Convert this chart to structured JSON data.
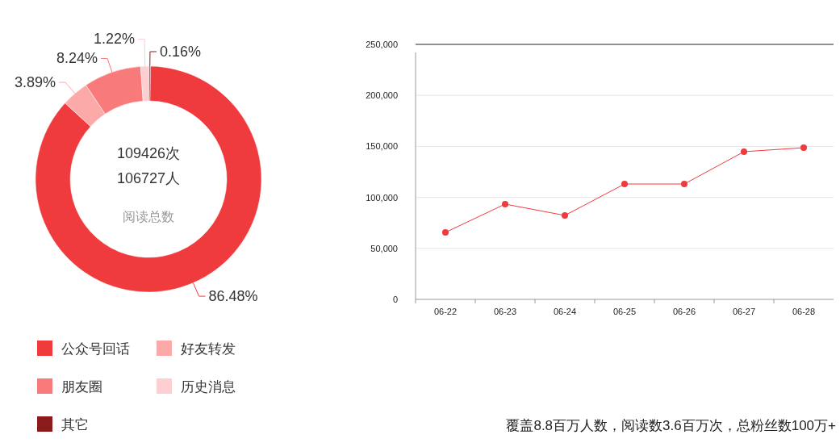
{
  "chart_data": [
    {
      "type": "donut",
      "categories": [
        "公众号回话",
        "好友转发",
        "朋友圈",
        "历史消息",
        "其它"
      ],
      "values": [
        86.48,
        3.89,
        8.24,
        1.22,
        0.16
      ],
      "colors": [
        "#ef3b3e",
        "#fbaaa9",
        "#f97a7a",
        "#fdcfd0",
        "#8b1a1a"
      ],
      "value_labels": [
        "86.48%",
        "3.89%",
        "8.24%",
        "1.22%",
        "0.16%"
      ],
      "legend": "bottom",
      "annotations": [
        "109426次",
        "106727人",
        "阅读总数"
      ]
    },
    {
      "type": "line",
      "categories": [
        "06-22",
        "06-23",
        "06-24",
        "06-25",
        "06-26",
        "06-27",
        "06-28"
      ],
      "values": [
        65700,
        93400,
        82300,
        113100,
        113100,
        144800,
        148700
      ],
      "color": "#ef3b3e",
      "marker": "circle",
      "grid": "y",
      "ylim": [
        0,
        250000
      ],
      "yticks": [
        {
          "value": 0,
          "label": "0"
        },
        {
          "value": 50000,
          "label": "50,000"
        },
        {
          "value": 100000,
          "label": "100,000"
        },
        {
          "value": 150000,
          "label": "150,000"
        },
        {
          "value": 200000,
          "label": "200,000"
        },
        {
          "value": 250000,
          "label": "250,000"
        }
      ],
      "annotations": [
        "覆盖8.8百万人数，阅读数3.6百万次，总粉丝数100万+"
      ]
    }
  ]
}
